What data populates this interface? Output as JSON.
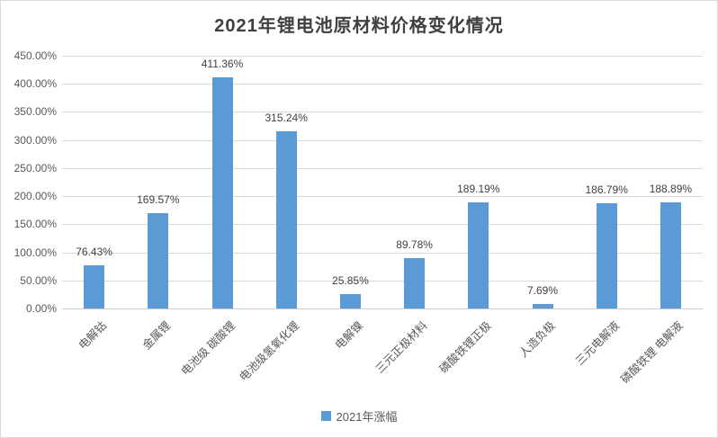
{
  "colors": {
    "bar": "#5b9bd5",
    "gridline": "#d9d9d9",
    "axis_line": "#cccccc",
    "tick_label": "#595959",
    "data_label": "#3f3f3f",
    "title": "#404040",
    "border": "#d9d9d9",
    "background": "#ffffff"
  },
  "legend": {
    "label": "2021年涨幅"
  },
  "chart_data": {
    "type": "bar",
    "title": "2021年锂电池原材料价格变化情况",
    "categories": [
      "电解钴",
      "金属锂",
      "电池级 碳酸锂",
      "电池级氢氧化锂",
      "电解镍",
      "三元正极材料",
      "磷酸铁锂正极",
      "人造负极",
      "三元电解液",
      "磷酸铁锂 电解液"
    ],
    "values": [
      76.43,
      169.57,
      411.36,
      315.24,
      25.85,
      89.78,
      189.19,
      7.69,
      186.79,
      188.89
    ],
    "data_labels": [
      "76.43%",
      "169.57%",
      "411.36%",
      "315.24%",
      "25.85%",
      "89.78%",
      "189.19%",
      "7.69%",
      "186.79%",
      "188.89%"
    ],
    "xlabel": "",
    "ylabel": "",
    "ylim": [
      0,
      450
    ],
    "ytick_step": 50,
    "ytick_labels": [
      "0.00%",
      "50.00%",
      "100.00%",
      "150.00%",
      "200.00%",
      "250.00%",
      "300.00%",
      "350.00%",
      "400.00%",
      "450.00%"
    ],
    "legend_entries": [
      "2021年涨幅"
    ],
    "legend_position": "bottom",
    "grid": true
  }
}
